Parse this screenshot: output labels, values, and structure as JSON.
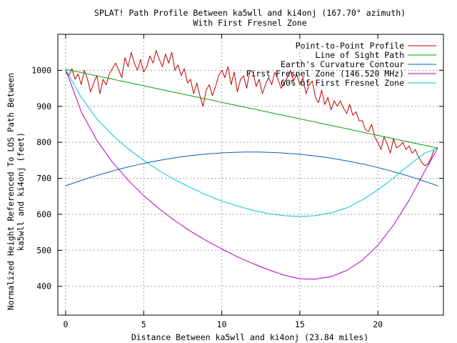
{
  "chart_data": {
    "type": "line",
    "title": "SPLAT! Path Profile Between ka5wll and ki4onj (167.70° azimuth)",
    "subtitle": "With First Fresnel Zone",
    "xlabel": "Distance Between ka5wll and ki4onj (23.84 miles)",
    "ylabel_line1": "Normalized Height Referenced To LOS Path Between",
    "ylabel_line2": "ka5wll and ki4onj (feet)",
    "xlim": [
      -0.5,
      24.2
    ],
    "ylim": [
      320,
      1100
    ],
    "x_ticks": [
      0,
      5,
      10,
      15,
      20
    ],
    "y_ticks": [
      400,
      500,
      600,
      700,
      800,
      900,
      1000
    ],
    "grid": true,
    "legend_position": "top-right",
    "path_length": 23.84,
    "series": [
      {
        "name": "Point-to-Point Profile",
        "color": "#c00000",
        "x": [
          0,
          0.2,
          0.4,
          0.6,
          0.8,
          1.0,
          1.2,
          1.4,
          1.6,
          1.8,
          2.0,
          2.2,
          2.4,
          2.6,
          2.8,
          3.0,
          3.2,
          3.4,
          3.6,
          3.8,
          4.0,
          4.2,
          4.4,
          4.6,
          4.8,
          5.0,
          5.2,
          5.4,
          5.6,
          5.8,
          6.0,
          6.2,
          6.4,
          6.6,
          6.8,
          7.0,
          7.2,
          7.4,
          7.6,
          7.8,
          8.0,
          8.2,
          8.4,
          8.6,
          8.8,
          9.0,
          9.2,
          9.4,
          9.6,
          9.8,
          10.0,
          10.2,
          10.4,
          10.6,
          10.8,
          11.0,
          11.2,
          11.4,
          11.6,
          11.8,
          12.0,
          12.2,
          12.4,
          12.6,
          12.8,
          13.0,
          13.2,
          13.4,
          13.6,
          13.8,
          14.0,
          14.2,
          14.4,
          14.6,
          14.8,
          15.0,
          15.2,
          15.4,
          15.6,
          15.8,
          16.0,
          16.2,
          16.4,
          16.6,
          16.8,
          17.0,
          17.2,
          17.4,
          17.6,
          17.8,
          18.0,
          18.2,
          18.4,
          18.6,
          18.8,
          19.0,
          19.2,
          19.4,
          19.6,
          19.8,
          20.0,
          20.2,
          20.4,
          20.6,
          20.8,
          21.0,
          21.2,
          21.4,
          21.6,
          21.8,
          22.0,
          22.2,
          22.4,
          22.6,
          22.8,
          23.0,
          23.2,
          23.4,
          23.6,
          23.84
        ],
        "y": [
          995,
          985,
          1005,
          975,
          990,
          960,
          1000,
          975,
          940,
          965,
          985,
          935,
          975,
          960,
          990,
          1005,
          1020,
          1000,
          980,
          1035,
          1010,
          1050,
          1020,
          1000,
          1030,
          995,
          1010,
          1040,
          1020,
          1055,
          1030,
          1010,
          1045,
          1020,
          1050,
          1000,
          1015,
          985,
          1005,
          965,
          975,
          935,
          965,
          930,
          900,
          945,
          960,
          930,
          955,
          985,
          1000,
          980,
          1010,
          960,
          995,
          940,
          975,
          985,
          950,
          1000,
          995,
          955,
          975,
          935,
          960,
          980,
          960,
          995,
          975,
          950,
          965,
          980,
          1000,
          970,
          990,
          960,
          980,
          935,
          960,
          970,
          925,
          910,
          945,
          905,
          925,
          890,
          915,
          900,
          915,
          895,
          880,
          905,
          875,
          885,
          860,
          860,
          835,
          830,
          850,
          815,
          800,
          780,
          815,
          795,
          770,
          810,
          785,
          790,
          800,
          780,
          790,
          770,
          780,
          760,
          745,
          735,
          740,
          755,
          780,
          785
        ]
      },
      {
        "name": "Line of Sight Path",
        "color": "#00a000",
        "x": [
          0,
          23.84
        ],
        "y": [
          1003,
          784
        ]
      },
      {
        "name": "Earth's Curvature Contour",
        "color": "#0060c0",
        "x": [
          0,
          11.92,
          23.84
        ],
        "y": [
          679,
          773,
          679
        ]
      },
      {
        "name": "First Fresnel Zone (146.520 MHz)",
        "color": "#b000c0",
        "x": [
          0,
          1,
          2,
          3,
          4,
          5,
          6,
          7,
          8,
          9,
          10,
          11,
          12,
          13,
          14,
          15,
          16,
          17,
          18,
          19,
          20,
          21,
          22,
          23,
          23.84
        ],
        "y": [
          1003,
          885,
          805,
          745,
          695,
          652,
          615,
          582,
          553,
          527,
          504,
          482,
          463,
          446,
          431,
          421,
          420,
          427,
          444,
          472,
          514,
          570,
          639,
          720,
          784
        ]
      },
      {
        "name": "60% of First Fresnel Zone",
        "color": "#00c8c8",
        "x": [
          0,
          1,
          2,
          3,
          4,
          5,
          6,
          7,
          8,
          9,
          10,
          11,
          12,
          13,
          14,
          15,
          16,
          17,
          18,
          19,
          20,
          21,
          22,
          23,
          23.84
        ],
        "y": [
          1003,
          925,
          865,
          820,
          782,
          750,
          721,
          696,
          674,
          654,
          637,
          623,
          611,
          602,
          596,
          594,
          596,
          604,
          618,
          640,
          668,
          701,
          737,
          770,
          784
        ]
      }
    ]
  }
}
